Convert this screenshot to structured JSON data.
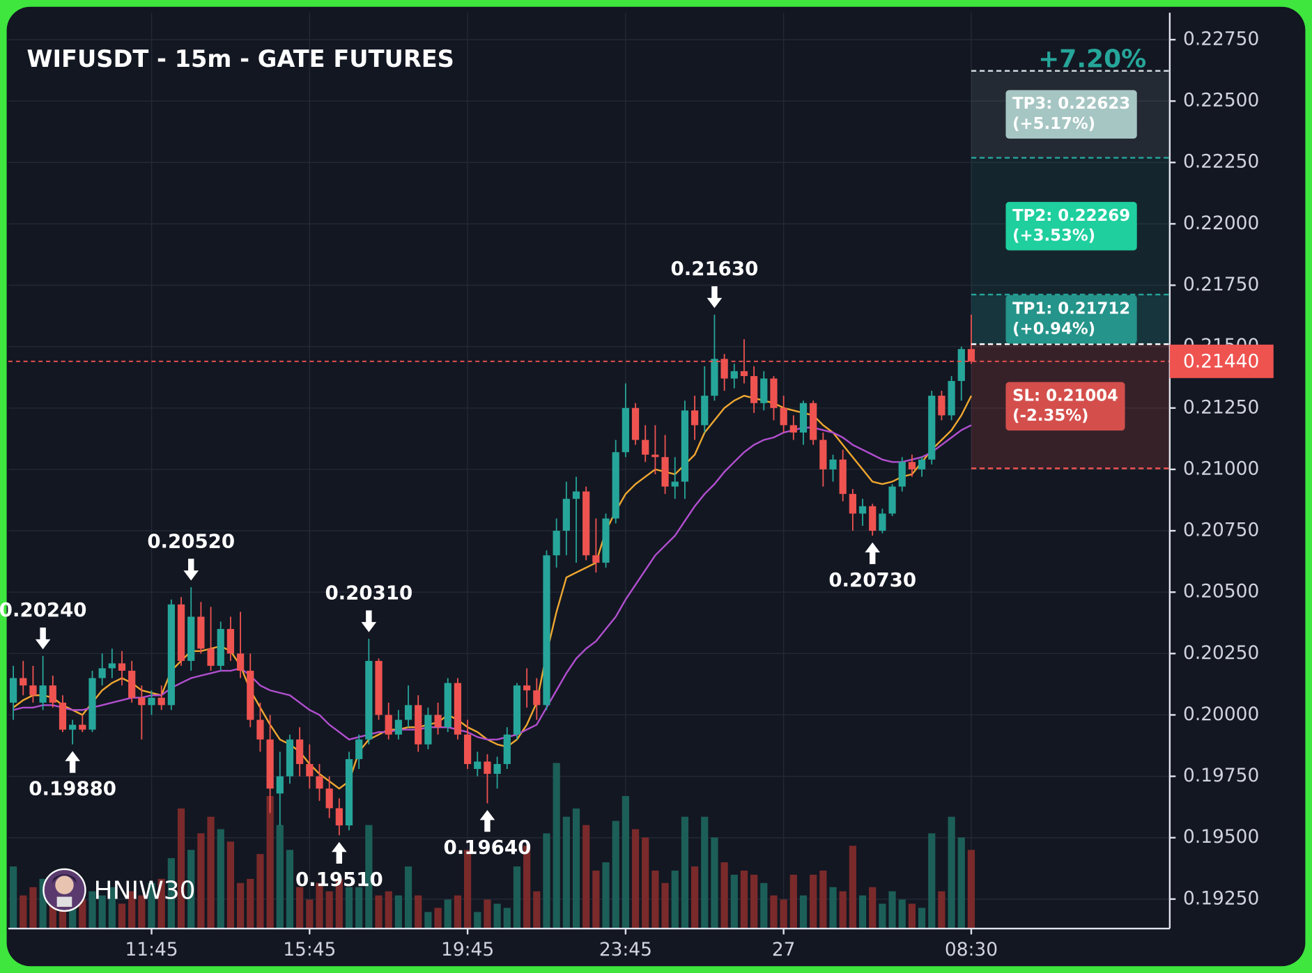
{
  "chart_data": {
    "type": "candlestick",
    "title": "WIFUSDT - 15m - GATE FUTURES",
    "watermark": "HNIW30",
    "total_gain": "+7.20%",
    "up_color": "#26a69a",
    "down_color": "#ef5350",
    "volume_up_color": "#1c5f58",
    "volume_down_color": "#7a2a2a",
    "ylim": [
      0.1913,
      0.2286
    ],
    "xlim": [
      -0.5,
      117.1
    ],
    "volume_lim": [
      0,
      200
    ],
    "grid": true,
    "yticks": [
      {
        "value": 0.1925,
        "label": "0.19250"
      },
      {
        "value": 0.195,
        "label": "0.19500"
      },
      {
        "value": 0.1975,
        "label": "0.19750"
      },
      {
        "value": 0.2,
        "label": "0.20000"
      },
      {
        "value": 0.2025,
        "label": "0.20250"
      },
      {
        "value": 0.205,
        "label": "0.20500"
      },
      {
        "value": 0.2075,
        "label": "0.20750"
      },
      {
        "value": 0.21,
        "label": "0.21000"
      },
      {
        "value": 0.2125,
        "label": "0.21250"
      },
      {
        "value": 0.215,
        "label": "0.21500"
      },
      {
        "value": 0.2175,
        "label": "0.21750"
      },
      {
        "value": 0.22,
        "label": "0.22000"
      },
      {
        "value": 0.2225,
        "label": "0.22250"
      },
      {
        "value": 0.225,
        "label": "0.22500"
      },
      {
        "value": 0.2275,
        "label": "0.22750"
      }
    ],
    "xticks": [
      {
        "value": 14,
        "label": "11:45"
      },
      {
        "value": 30,
        "label": "15:45"
      },
      {
        "value": 46,
        "label": "19:45"
      },
      {
        "value": 62,
        "label": "23:45"
      },
      {
        "value": 78,
        "label": "27"
      },
      {
        "value": 97,
        "label": "08:30"
      }
    ],
    "candles": [
      [
        0.2005,
        0.202,
        0.1998,
        0.2015
      ],
      [
        0.2015,
        0.2022,
        0.2008,
        0.2012
      ],
      [
        0.2012,
        0.202,
        0.2005,
        0.2008
      ],
      [
        0.2005,
        0.2024,
        0.2002,
        0.2012
      ],
      [
        0.2012,
        0.2016,
        0.2003,
        0.2005
      ],
      [
        0.2005,
        0.2008,
        0.1993,
        0.1994
      ],
      [
        0.1994,
        0.1998,
        0.1988,
        0.1996
      ],
      [
        0.1996,
        0.2,
        0.1993,
        0.1994
      ],
      [
        0.1994,
        0.2018,
        0.1993,
        0.2015
      ],
      [
        0.2015,
        0.2025,
        0.2012,
        0.2019
      ],
      [
        0.2019,
        0.2027,
        0.2015,
        0.2021
      ],
      [
        0.2021,
        0.2026,
        0.2012,
        0.2018
      ],
      [
        0.2018,
        0.2022,
        0.2005,
        0.2007
      ],
      [
        0.2007,
        0.2012,
        0.199,
        0.2004
      ],
      [
        0.2004,
        0.201,
        0.2,
        0.2007
      ],
      [
        0.2007,
        0.2012,
        0.2002,
        0.2004
      ],
      [
        0.2004,
        0.2047,
        0.2002,
        0.2045
      ],
      [
        0.2045,
        0.2048,
        0.202,
        0.2022
      ],
      [
        0.2022,
        0.2052,
        0.2018,
        0.204
      ],
      [
        0.204,
        0.2046,
        0.2025,
        0.2027
      ],
      [
        0.2027,
        0.2044,
        0.2018,
        0.202
      ],
      [
        0.202,
        0.2038,
        0.2018,
        0.2035
      ],
      [
        0.2035,
        0.204,
        0.2022,
        0.2025
      ],
      [
        0.2025,
        0.2042,
        0.2015,
        0.2018
      ],
      [
        0.2018,
        0.2025,
        0.1995,
        0.1998
      ],
      [
        0.1998,
        0.2005,
        0.1985,
        0.199
      ],
      [
        0.199,
        0.2,
        0.196,
        0.197
      ],
      [
        0.1968,
        0.1985,
        0.1955,
        0.1975
      ],
      [
        0.1975,
        0.1992,
        0.1972,
        0.199
      ],
      [
        0.199,
        0.1995,
        0.1975,
        0.198
      ],
      [
        0.198,
        0.1988,
        0.197,
        0.1975
      ],
      [
        0.1975,
        0.198,
        0.1965,
        0.197
      ],
      [
        0.197,
        0.1975,
        0.1958,
        0.1962
      ],
      [
        0.1962,
        0.1966,
        0.1951,
        0.1955
      ],
      [
        0.1955,
        0.1985,
        0.1953,
        0.1982
      ],
      [
        0.1982,
        0.1992,
        0.1978,
        0.199
      ],
      [
        0.199,
        0.2031,
        0.1988,
        0.2022
      ],
      [
        0.2022,
        0.2023,
        0.1998,
        0.2
      ],
      [
        0.2,
        0.2005,
        0.199,
        0.1992
      ],
      [
        0.1992,
        0.2002,
        0.199,
        0.1998
      ],
      [
        0.1998,
        0.2012,
        0.1995,
        0.2004
      ],
      [
        0.2004,
        0.2008,
        0.1985,
        0.1988
      ],
      [
        0.1988,
        0.2003,
        0.1986,
        0.2
      ],
      [
        0.2,
        0.2005,
        0.1992,
        0.1995
      ],
      [
        0.1995,
        0.2015,
        0.1993,
        0.2013
      ],
      [
        0.2013,
        0.2015,
        0.199,
        0.1992
      ],
      [
        0.1992,
        0.1998,
        0.1978,
        0.198
      ],
      [
        0.1978,
        0.1985,
        0.1975,
        0.1981
      ],
      [
        0.1981,
        0.1984,
        0.1964,
        0.1976
      ],
      [
        0.1976,
        0.1983,
        0.197,
        0.198
      ],
      [
        0.198,
        0.1995,
        0.1978,
        0.1992
      ],
      [
        0.1992,
        0.2013,
        0.199,
        0.2012
      ],
      [
        0.2012,
        0.2019,
        0.2003,
        0.201
      ],
      [
        0.201,
        0.2015,
        0.1998,
        0.2004
      ],
      [
        0.2004,
        0.2067,
        0.2002,
        0.2065
      ],
      [
        0.2065,
        0.208,
        0.206,
        0.2075
      ],
      [
        0.2075,
        0.2095,
        0.2065,
        0.2088
      ],
      [
        0.2088,
        0.2097,
        0.2062,
        0.2091
      ],
      [
        0.2091,
        0.2093,
        0.2063,
        0.2065
      ],
      [
        0.2065,
        0.208,
        0.2058,
        0.2062
      ],
      [
        0.2062,
        0.2082,
        0.206,
        0.208
      ],
      [
        0.208,
        0.2112,
        0.2078,
        0.2107
      ],
      [
        0.2107,
        0.2135,
        0.2105,
        0.2125
      ],
      [
        0.2125,
        0.2127,
        0.211,
        0.2112
      ],
      [
        0.2112,
        0.2118,
        0.2103,
        0.2106
      ],
      [
        0.2106,
        0.2118,
        0.2098,
        0.2105
      ],
      [
        0.2105,
        0.2114,
        0.209,
        0.2093
      ],
      [
        0.2093,
        0.2105,
        0.2088,
        0.2095
      ],
      [
        0.2095,
        0.2128,
        0.2088,
        0.2124
      ],
      [
        0.2124,
        0.213,
        0.2112,
        0.2118
      ],
      [
        0.2118,
        0.2142,
        0.2115,
        0.213
      ],
      [
        0.213,
        0.2163,
        0.2128,
        0.2145
      ],
      [
        0.2145,
        0.2147,
        0.2132,
        0.2137
      ],
      [
        0.2137,
        0.2143,
        0.2133,
        0.214
      ],
      [
        0.214,
        0.2153,
        0.2135,
        0.2138
      ],
      [
        0.2138,
        0.2142,
        0.2123,
        0.2127
      ],
      [
        0.2127,
        0.214,
        0.2124,
        0.2137
      ],
      [
        0.2137,
        0.2138,
        0.212,
        0.2125
      ],
      [
        0.2125,
        0.213,
        0.2115,
        0.2118
      ],
      [
        0.2118,
        0.2122,
        0.2112,
        0.2115
      ],
      [
        0.2115,
        0.2128,
        0.211,
        0.2127
      ],
      [
        0.2127,
        0.2128,
        0.211,
        0.2112
      ],
      [
        0.2112,
        0.2115,
        0.2093,
        0.21
      ],
      [
        0.21,
        0.2106,
        0.2095,
        0.2104
      ],
      [
        0.2104,
        0.2108,
        0.2087,
        0.209
      ],
      [
        0.209,
        0.2092,
        0.2075,
        0.2082
      ],
      [
        0.2082,
        0.2088,
        0.2077,
        0.2085
      ],
      [
        0.2085,
        0.2086,
        0.2073,
        0.2075
      ],
      [
        0.2075,
        0.2084,
        0.2074,
        0.2082
      ],
      [
        0.2082,
        0.2094,
        0.2081,
        0.2093
      ],
      [
        0.2093,
        0.2105,
        0.2091,
        0.2103
      ],
      [
        0.2103,
        0.2106,
        0.2097,
        0.21
      ],
      [
        0.21,
        0.2105,
        0.2097,
        0.2104
      ],
      [
        0.2104,
        0.2132,
        0.2102,
        0.213
      ],
      [
        0.213,
        0.2132,
        0.212,
        0.2122
      ],
      [
        0.2122,
        0.2138,
        0.212,
        0.2136
      ],
      [
        0.2136,
        0.215,
        0.2128,
        0.2149
      ],
      [
        0.2149,
        0.2163,
        0.2143,
        0.2144
      ]
    ],
    "volumes": [
      75,
      40,
      50,
      60,
      40,
      55,
      30,
      35,
      45,
      40,
      50,
      30,
      45,
      40,
      55,
      60,
      85,
      145,
      95,
      115,
      135,
      120,
      105,
      55,
      60,
      90,
      160,
      125,
      95,
      50,
      35,
      55,
      45,
      60,
      50,
      50,
      125,
      40,
      45,
      40,
      75,
      40,
      20,
      25,
      35,
      40,
      95,
      20,
      35,
      30,
      25,
      75,
      100,
      45,
      115,
      200,
      135,
      145,
      125,
      70,
      80,
      130,
      160,
      120,
      110,
      70,
      55,
      70,
      135,
      75,
      135,
      110,
      80,
      65,
      70,
      65,
      55,
      40,
      35,
      65,
      40,
      65,
      70,
      50,
      45,
      100,
      40,
      50,
      30,
      45,
      35,
      30,
      25,
      115,
      45,
      135,
      110,
      95
    ],
    "lines": [
      {
        "color": "#f0a830",
        "values": [
          0.2003,
          0.2006,
          0.2008,
          0.2008,
          0.2007,
          0.2004,
          0.2002,
          0.2,
          0.2005,
          0.201,
          0.2013,
          0.2015,
          0.2013,
          0.201,
          0.2009,
          0.2008,
          0.2018,
          0.2022,
          0.2026,
          0.2026,
          0.2027,
          0.2028,
          0.2026,
          0.202,
          0.201,
          0.2003,
          0.1996,
          0.199,
          0.1988,
          0.1985,
          0.198,
          0.1976,
          0.1973,
          0.197,
          0.1973,
          0.1985,
          0.199,
          0.1992,
          0.1994,
          0.1994,
          0.1995,
          0.1995,
          0.1996,
          0.1997,
          0.2,
          0.1998,
          0.1995,
          0.1993,
          0.199,
          0.1988,
          0.1987,
          0.199,
          0.1996,
          0.2005,
          0.2025,
          0.2042,
          0.2056,
          0.2058,
          0.206,
          0.2062,
          0.2075,
          0.2083,
          0.209,
          0.2094,
          0.2097,
          0.21,
          0.2099,
          0.2098,
          0.2102,
          0.2106,
          0.2115,
          0.212,
          0.2125,
          0.2128,
          0.213,
          0.2129,
          0.2128,
          0.2127,
          0.2125,
          0.2124,
          0.2123,
          0.2122,
          0.2118,
          0.2115,
          0.211,
          0.2105,
          0.21,
          0.2095,
          0.2094,
          0.2095,
          0.2097,
          0.2098,
          0.2103,
          0.2108,
          0.2112,
          0.2116,
          0.2122,
          0.213
        ]
      },
      {
        "color": "#b24fd0",
        "values": [
          0.2002,
          0.2003,
          0.2003,
          0.2004,
          0.2004,
          0.2003,
          0.2002,
          0.2002,
          0.2003,
          0.2004,
          0.2005,
          0.2006,
          0.2007,
          0.2007,
          0.2008,
          0.2008,
          0.2011,
          0.2013,
          0.2015,
          0.2016,
          0.2017,
          0.2018,
          0.2018,
          0.2019,
          0.2016,
          0.2012,
          0.201,
          0.2009,
          0.2008,
          0.2005,
          0.2002,
          0.2,
          0.1996,
          0.1993,
          0.199,
          0.1991,
          0.1992,
          0.1993,
          0.1993,
          0.1994,
          0.1994,
          0.1994,
          0.1995,
          0.1995,
          0.1995,
          0.1994,
          0.1993,
          0.1991,
          0.199,
          0.199,
          0.1991,
          0.1992,
          0.1994,
          0.1996,
          0.2003,
          0.201,
          0.2017,
          0.2023,
          0.2027,
          0.203,
          0.2035,
          0.204,
          0.2047,
          0.2053,
          0.2059,
          0.2065,
          0.2069,
          0.2073,
          0.2079,
          0.2085,
          0.209,
          0.2094,
          0.2099,
          0.2103,
          0.2107,
          0.211,
          0.2112,
          0.2113,
          0.2115,
          0.2116,
          0.2117,
          0.2117,
          0.2116,
          0.2115,
          0.2113,
          0.211,
          0.2108,
          0.2106,
          0.2104,
          0.2103,
          0.2103,
          0.2104,
          0.2105,
          0.2107,
          0.211,
          0.2113,
          0.2116,
          0.2118
        ]
      }
    ],
    "annotations": [
      {
        "index": 3,
        "value": 0.2024,
        "label": "0.20240",
        "direction": "down"
      },
      {
        "index": 6,
        "value": 0.1988,
        "label": "0.19880",
        "direction": "up"
      },
      {
        "index": 18,
        "value": 0.2052,
        "label": "0.20520",
        "direction": "down"
      },
      {
        "index": 33,
        "value": 0.1951,
        "label": "0.19510",
        "direction": "up"
      },
      {
        "index": 36,
        "value": 0.2031,
        "label": "0.20310",
        "direction": "down"
      },
      {
        "index": 48,
        "value": 0.1964,
        "label": "0.19640",
        "direction": "up"
      },
      {
        "index": 71,
        "value": 0.2163,
        "label": "0.21630",
        "direction": "down"
      },
      {
        "index": 87,
        "value": 0.2073,
        "label": "0.20730",
        "direction": "up"
      }
    ],
    "entry": 0.2151,
    "entry_color": "#ffffff",
    "levels": [
      {
        "value": 0.22623,
        "label": "TP3: 0.22623",
        "pct": "(+5.17%)",
        "color": "#cfd8dc",
        "box_color": "#a6c6c3",
        "zone_color": "rgba(130,140,150,0.16)"
      },
      {
        "value": 0.22269,
        "label": "TP2: 0.22269",
        "pct": "(+3.53%)",
        "color": "#26a69a",
        "box_color": "#1fcf9e",
        "zone_color": "rgba(38,166,154,0.10)"
      },
      {
        "value": 0.21712,
        "label": "TP1: 0.21712",
        "pct": "(+0.94%)",
        "color": "#26a69a",
        "box_color": "#25948a",
        "zone_color": "rgba(38,166,154,0.22)"
      }
    ],
    "stop": {
      "value": 0.21004,
      "label": "SL: 0.21004",
      "pct": "(-2.35%)",
      "color": "#ef5350",
      "box_color": "#d44f4c",
      "zone_color": "rgba(239,83,80,0.17)"
    },
    "current_price": {
      "value": 0.2144,
      "label": "0.21440",
      "color": "#ef5350"
    }
  }
}
